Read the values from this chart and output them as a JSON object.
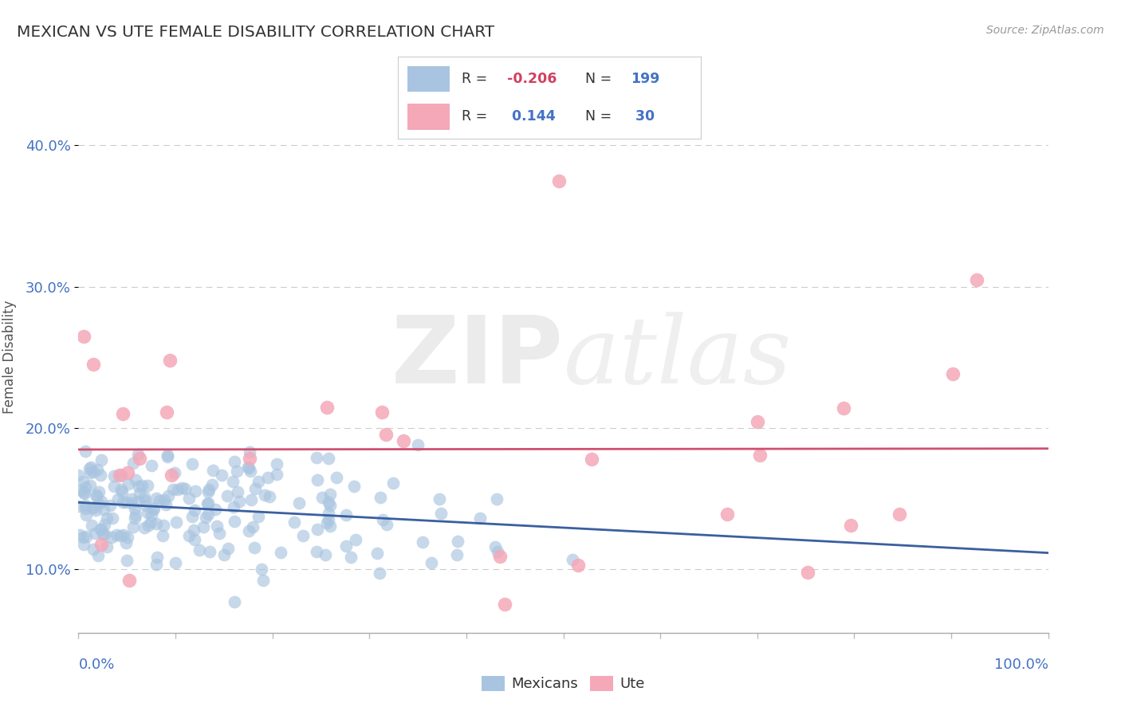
{
  "title": "MEXICAN VS UTE FEMALE DISABILITY CORRELATION CHART",
  "source": "Source: ZipAtlas.com",
  "ylabel": "Female Disability",
  "ytick_values": [
    0.1,
    0.2,
    0.3,
    0.4
  ],
  "xlim": [
    0.0,
    1.0
  ],
  "ylim": [
    0.055,
    0.445
  ],
  "mexicans_color": "#a8c4e0",
  "ute_color": "#f4a8b8",
  "mexicans_line_color": "#3a5fa0",
  "ute_line_color": "#d05070",
  "background_color": "#ffffff",
  "grid_color": "#cccccc",
  "watermark_zip": "ZIP",
  "watermark_atlas": "atlas",
  "mexicans_R": -0.206,
  "mexicans_N": 199,
  "ute_R": 0.144,
  "ute_N": 30,
  "seed": 7,
  "title_color": "#333333",
  "source_color": "#999999",
  "axis_label_color": "#4472c4",
  "ylabel_color": "#555555",
  "legend_r_neg_color": "#d04060",
  "legend_r_pos_color": "#4472c4",
  "legend_n_color": "#4472c4"
}
